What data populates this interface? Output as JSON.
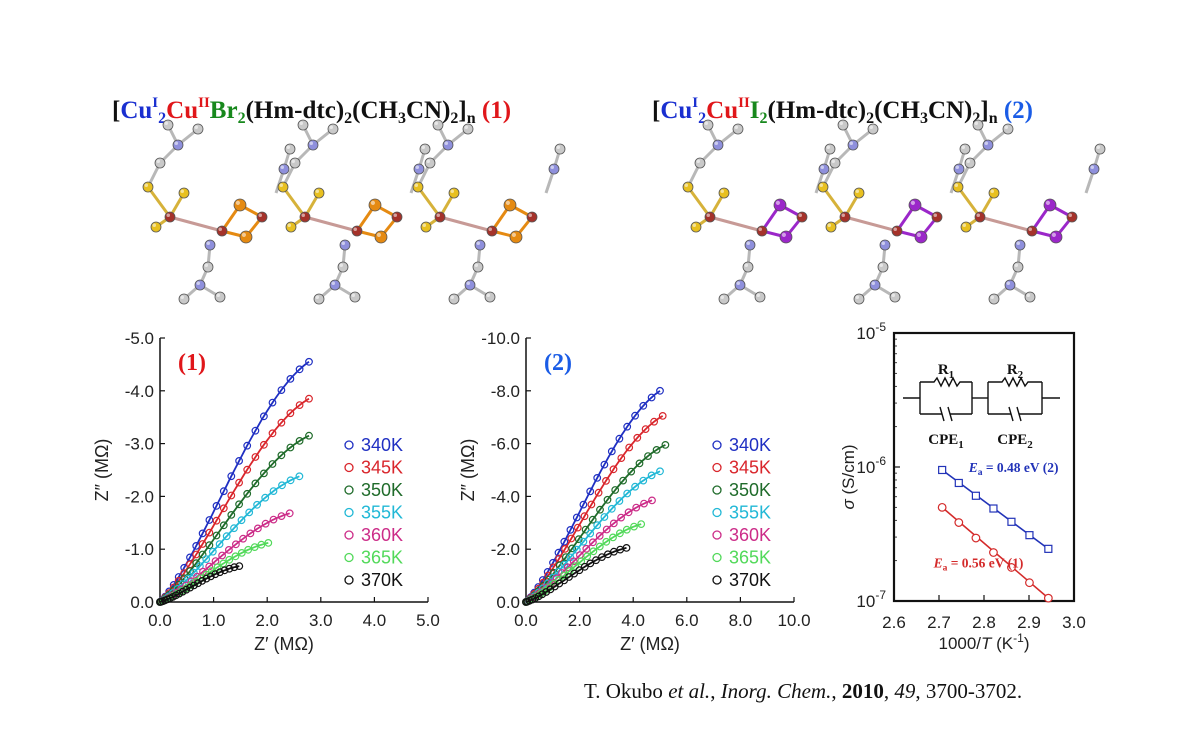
{
  "titles": {
    "left": [
      "[",
      "Cu",
      "I",
      "2",
      "Cu",
      "II",
      "Br",
      "2",
      "(Hm-dtc)",
      "2",
      "(CH",
      "3",
      "CN)",
      "2",
      "]",
      "n",
      " (1)"
    ],
    "right": [
      "[",
      "Cu",
      "I",
      "2",
      "Cu",
      "II",
      "I",
      "2",
      "(Hm-dtc)",
      "2",
      "(CH",
      "3",
      "CN)",
      "2",
      "]",
      "n",
      " (2)"
    ]
  },
  "citation": {
    "authors": "T. Okubo ",
    "etal": "et al.",
    "journal": "Inorg. Chem.",
    "year": "2010",
    "volume": "49",
    "pages": "3700-3702."
  },
  "colors": {
    "copper": "#a5322a",
    "sulfur": "#e8c020",
    "bromine": "#e58a12",
    "iodine": "#9b27c9",
    "nitrogen": "#8f90dc",
    "carbon": "#c9c9c9"
  },
  "circuit": {
    "r1": [
      "R",
      "1"
    ],
    "r2": [
      "R",
      "2"
    ],
    "cpe1": [
      "CPE",
      "1"
    ],
    "cpe2": [
      "CPE",
      "2"
    ]
  },
  "chart_data": [
    {
      "type": "scatter",
      "panel_label": "(1)",
      "xlabel": "Z′ (MΩ)",
      "ylabel": "Z″ (MΩ)",
      "xlim": [
        0,
        5
      ],
      "ylim": [
        0,
        -5
      ],
      "xticks": [
        "0.0",
        "1.0",
        "2.0",
        "3.0",
        "4.0",
        "5.0"
      ],
      "yticks": [
        "0.0",
        "-1.0",
        "-2.0",
        "-3.0",
        "-4.0",
        "-5.0"
      ],
      "series": [
        {
          "name": "340K",
          "color": "#1f2fc2",
          "xmax": 2.78,
          "ymax": -4.55
        },
        {
          "name": "345K",
          "color": "#d9262c",
          "xmax": 2.78,
          "ymax": -3.85
        },
        {
          "name": "350K",
          "color": "#1f6b2a",
          "xmax": 2.78,
          "ymax": -3.15
        },
        {
          "name": "355K",
          "color": "#22b8d6",
          "xmax": 2.6,
          "ymax": -2.38
        },
        {
          "name": "360K",
          "color": "#cc2c88",
          "xmax": 2.42,
          "ymax": -1.68
        },
        {
          "name": "365K",
          "color": "#52d95a",
          "xmax": 2.02,
          "ymax": -1.12
        },
        {
          "name": "370K",
          "color": "#111111",
          "xmax": 1.48,
          "ymax": -0.68
        }
      ]
    },
    {
      "type": "scatter",
      "panel_label": "(2)",
      "xlabel": "Z′ (MΩ)",
      "ylabel": "Z″ (MΩ)",
      "xlim": [
        0,
        10
      ],
      "ylim": [
        0,
        -10
      ],
      "xticks": [
        "0.0",
        "2.0",
        "4.0",
        "6.0",
        "8.0",
        "10.0"
      ],
      "yticks": [
        "0.0",
        "-2.0",
        "-4.0",
        "-6.0",
        "-8.0",
        "-10.0"
      ],
      "series": [
        {
          "name": "340K",
          "color": "#1f2fc2",
          "xmax": 5.0,
          "ymax": -8.0
        },
        {
          "name": "345K",
          "color": "#d9262c",
          "xmax": 5.1,
          "ymax": -7.05
        },
        {
          "name": "350K",
          "color": "#1f6b2a",
          "xmax": 5.2,
          "ymax": -5.95
        },
        {
          "name": "355K",
          "color": "#22b8d6",
          "xmax": 5.0,
          "ymax": -4.95
        },
        {
          "name": "360K",
          "color": "#cc2c88",
          "xmax": 4.7,
          "ymax": -3.85
        },
        {
          "name": "365K",
          "color": "#52d95a",
          "xmax": 4.3,
          "ymax": -2.95
        },
        {
          "name": "370K",
          "color": "#111111",
          "xmax": 3.75,
          "ymax": -2.05
        }
      ]
    },
    {
      "type": "scatter",
      "xlabel": [
        "1000/",
        "T",
        " (K",
        "-1",
        ")"
      ],
      "ylabel": [
        "σ",
        " (S/cm)"
      ],
      "xlim": [
        2.6,
        3.0
      ],
      "ylim": [
        1e-07,
        1e-05
      ],
      "yscale": "log",
      "xticks": [
        "2.6",
        "2.7",
        "2.8",
        "2.9",
        "3.0"
      ],
      "yticks": [
        [
          "10",
          "-7"
        ],
        [
          "10",
          "-6"
        ],
        [
          "10",
          "-5"
        ]
      ],
      "series": [
        {
          "name": [
            "E",
            "a",
            " = 0.48 eV (2)"
          ],
          "color": "#2233b8",
          "marker": "square",
          "x": [
            2.707,
            2.744,
            2.782,
            2.821,
            2.861,
            2.901,
            2.943
          ],
          "y": [
            9.5e-07,
            7.6e-07,
            6.1e-07,
            4.9e-07,
            3.9e-07,
            3.1e-07,
            2.45e-07
          ]
        },
        {
          "name": [
            "E",
            "a",
            " = 0.56 eV (1)"
          ],
          "color": "#d42b2b",
          "marker": "circle",
          "x": [
            2.707,
            2.744,
            2.782,
            2.821,
            2.861,
            2.901,
            2.943
          ],
          "y": [
            5e-07,
            3.85e-07,
            2.95e-07,
            2.3e-07,
            1.78e-07,
            1.37e-07,
            1.05e-07
          ]
        }
      ]
    }
  ]
}
